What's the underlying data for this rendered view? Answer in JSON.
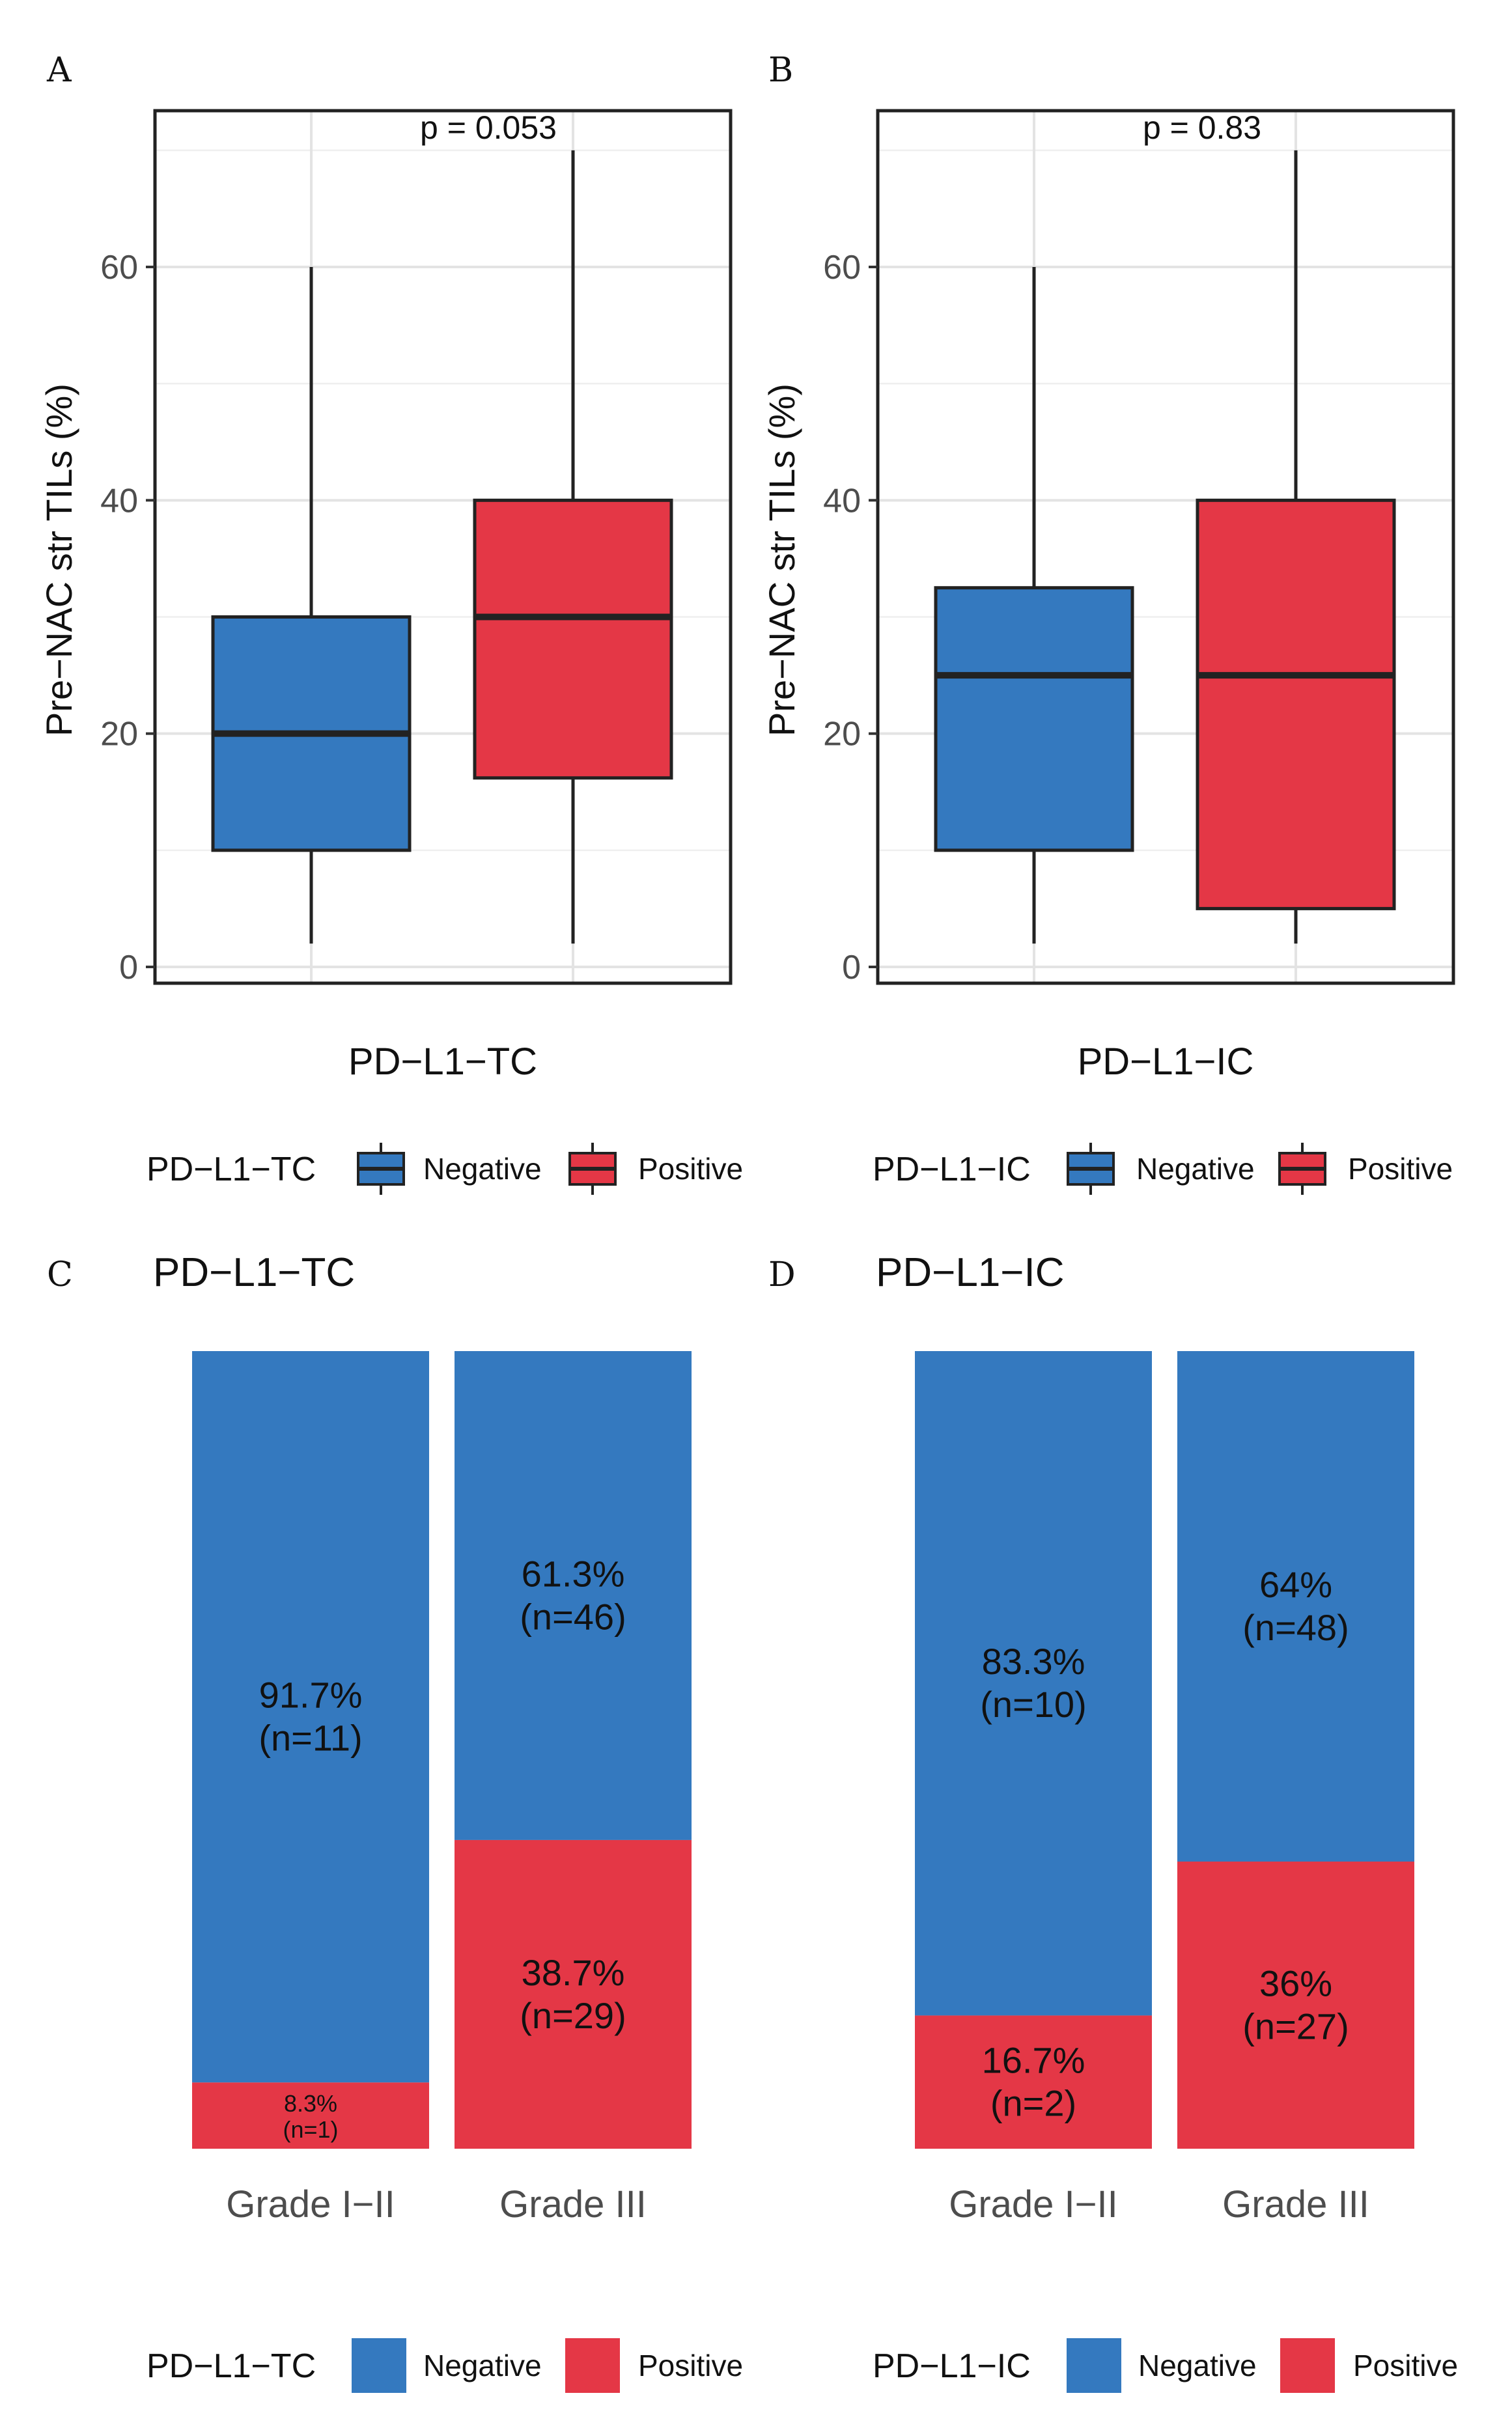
{
  "panels": {
    "A": "A",
    "B": "B",
    "C": "C",
    "D": "D"
  },
  "colors": {
    "negative": "#3479BF",
    "positive": "#E43746"
  },
  "chart_data": [
    {
      "panel": "A",
      "type": "box",
      "xlabel": "PD−L1−TC",
      "ylabel": "Pre−NAC str TILs (%)",
      "ylim": [
        0,
        70
      ],
      "yticks": [
        "0",
        "20",
        "40",
        "60"
      ],
      "annotation": "p = 0.053",
      "legend": {
        "title": "PD−L1−TC",
        "items": [
          "Negative",
          "Positive"
        ]
      },
      "series": [
        {
          "name": "Negative",
          "min": 2,
          "q1": 10,
          "median": 20,
          "q3": 30,
          "max": 60
        },
        {
          "name": "Positive",
          "min": 2,
          "q1": 16.2,
          "median": 30,
          "q3": 40,
          "max": 70
        }
      ]
    },
    {
      "panel": "B",
      "type": "box",
      "xlabel": "PD−L1−IC",
      "ylabel": "Pre−NAC str TILs (%)",
      "ylim": [
        0,
        70
      ],
      "yticks": [
        "0",
        "20",
        "40",
        "60"
      ],
      "annotation": "p = 0.83",
      "legend": {
        "title": "PD−L1−IC",
        "items": [
          "Negative",
          "Positive"
        ]
      },
      "series": [
        {
          "name": "Negative",
          "min": 2,
          "q1": 10,
          "median": 25,
          "q3": 32.5,
          "max": 60
        },
        {
          "name": "Positive",
          "min": 2,
          "q1": 5,
          "median": 25,
          "q3": 40,
          "max": 70
        }
      ]
    },
    {
      "panel": "C",
      "type": "bar",
      "stacked": true,
      "title": "PD−L1−TC",
      "categories": [
        "Grade I−II",
        "Grade III"
      ],
      "legend": {
        "title": "PD−L1−TC",
        "items": [
          "Negative",
          "Positive"
        ]
      },
      "series": [
        {
          "name": "Negative",
          "values": [
            91.7,
            61.3
          ],
          "labels": [
            [
              "91.7%",
              "(n=11)"
            ],
            [
              "61.3%",
              "(n=46)"
            ]
          ]
        },
        {
          "name": "Positive",
          "values": [
            8.3,
            38.7
          ],
          "labels": [
            [
              "8.3%",
              "(n=1)"
            ],
            [
              "38.7%",
              "(n=29)"
            ]
          ]
        }
      ]
    },
    {
      "panel": "D",
      "type": "bar",
      "stacked": true,
      "title": "PD−L1−IC",
      "categories": [
        "Grade I−II",
        "Grade III"
      ],
      "legend": {
        "title": "PD−L1−IC",
        "items": [
          "Negative",
          "Positive"
        ]
      },
      "series": [
        {
          "name": "Negative",
          "values": [
            83.3,
            64
          ],
          "labels": [
            [
              "83.3%",
              "(n=10)"
            ],
            [
              "64%",
              "(n=48)"
            ]
          ]
        },
        {
          "name": "Positive",
          "values": [
            16.7,
            36
          ],
          "labels": [
            [
              "16.7%",
              "(n=2)"
            ],
            [
              "36%",
              "(n=27)"
            ]
          ]
        }
      ]
    }
  ]
}
